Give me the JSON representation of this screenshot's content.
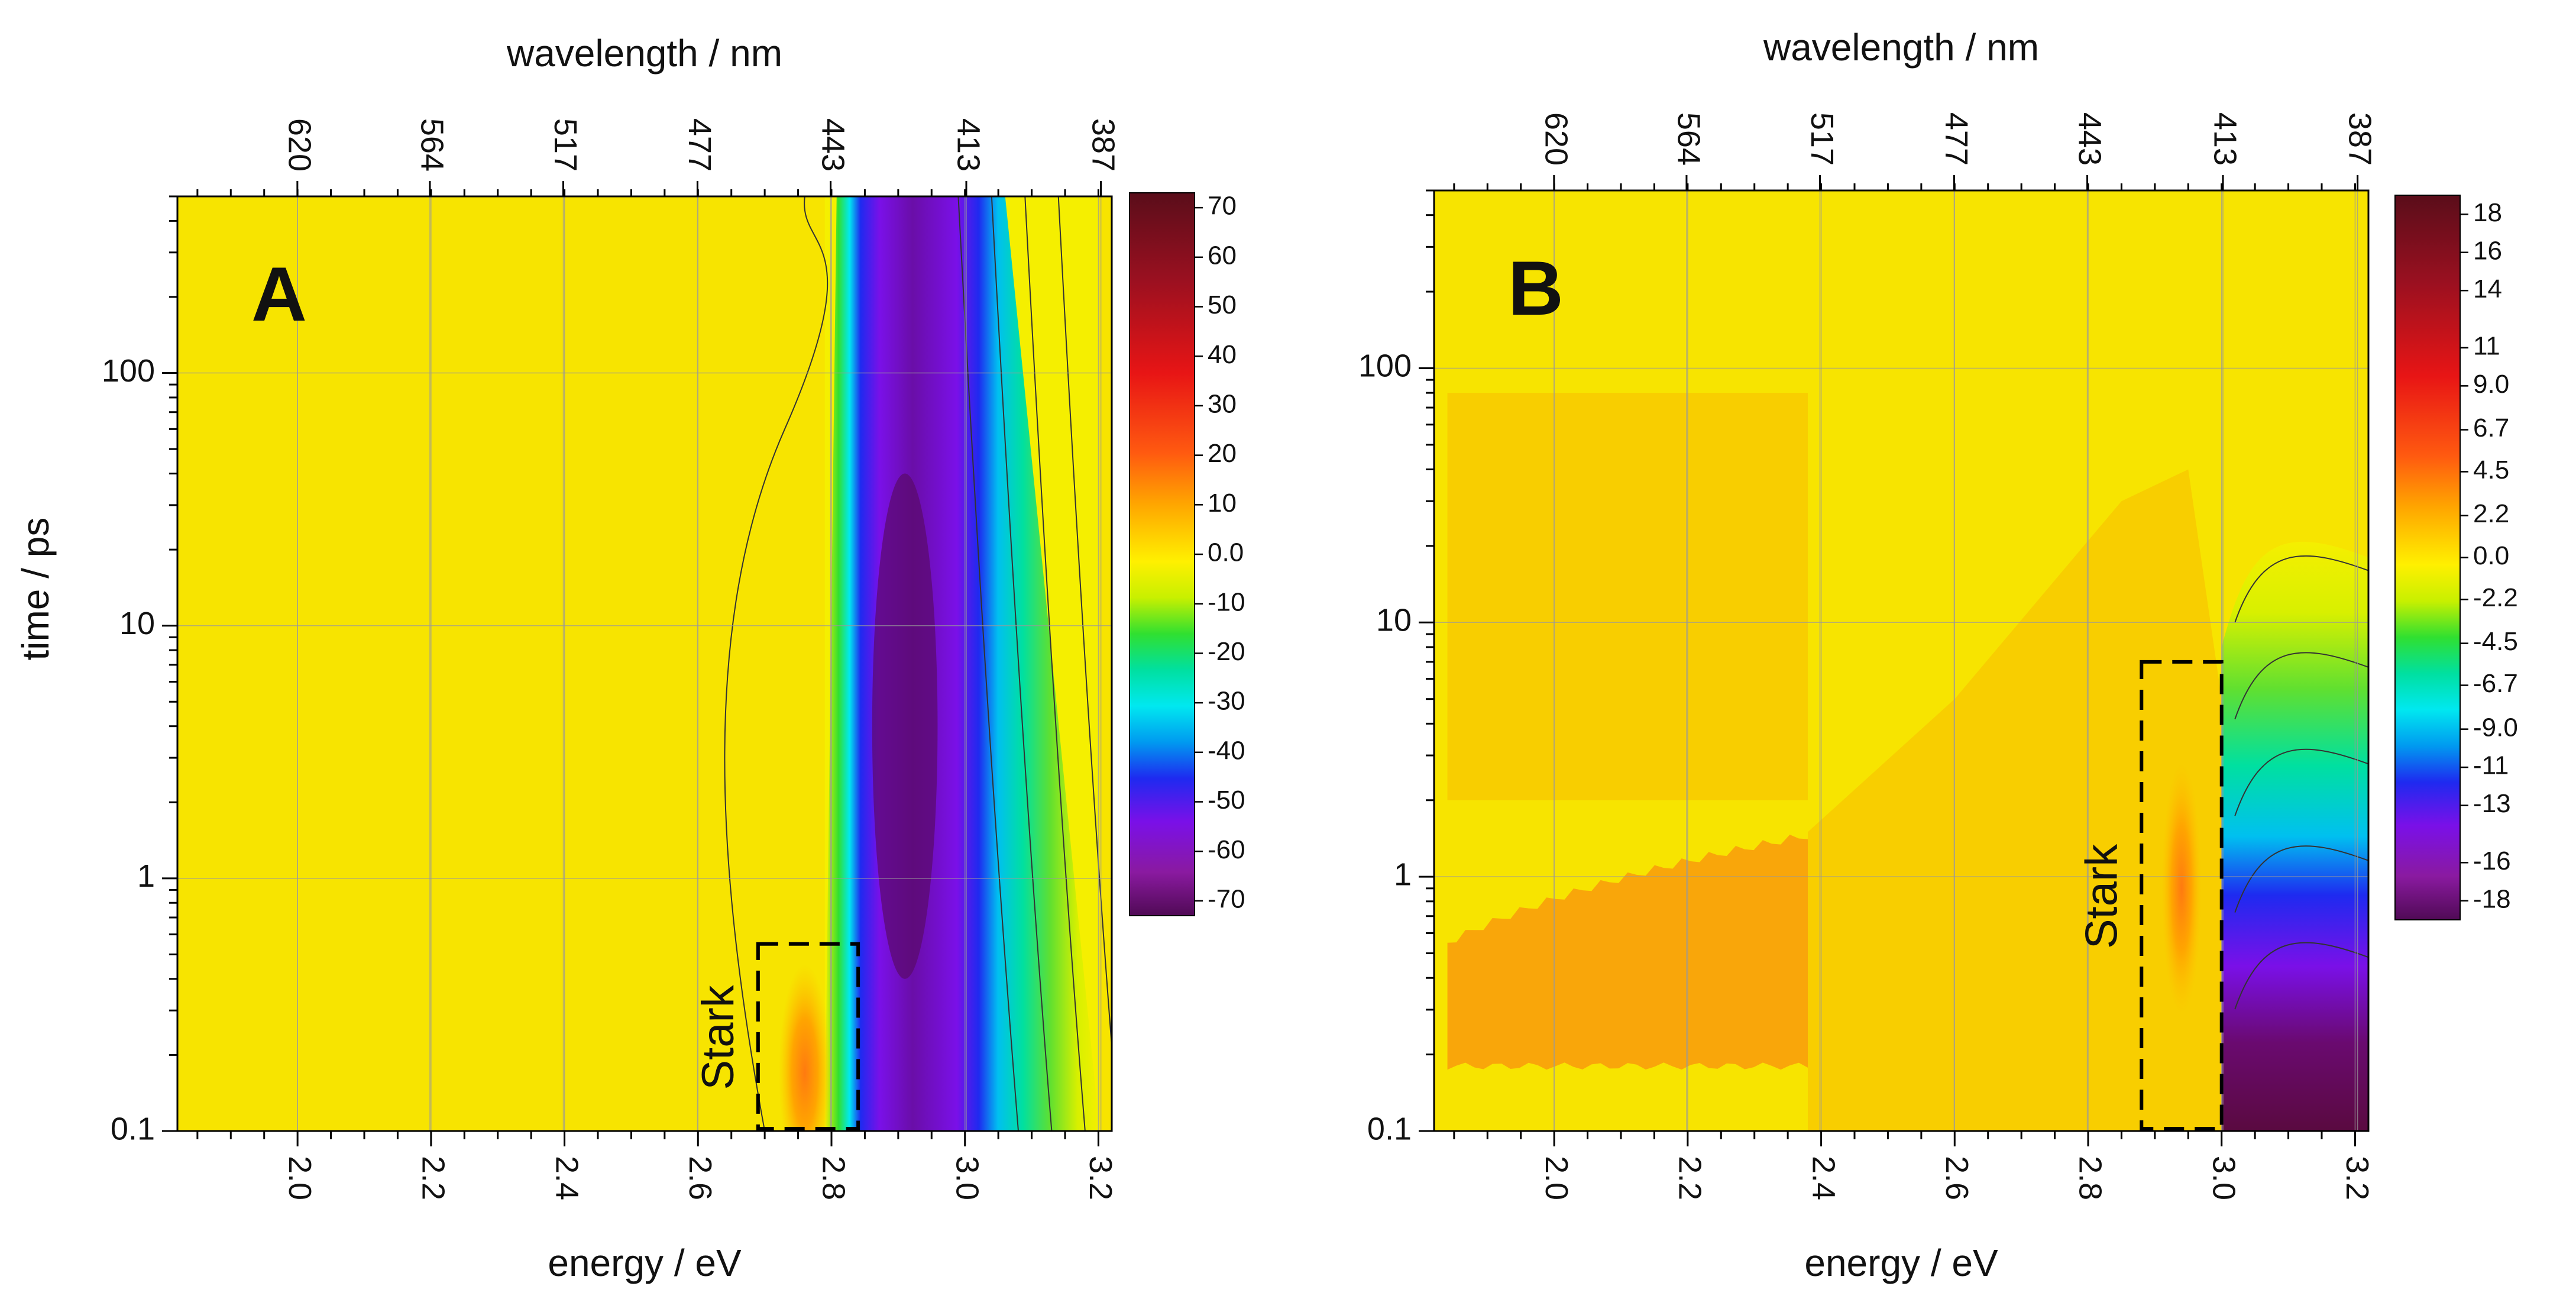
{
  "chart_data": [
    {
      "panel_label": "A",
      "type": "heatmap",
      "xlabel": "energy / eV",
      "ylabel": "time / ps",
      "x2label": "wavelength / nm",
      "xlim": [
        1.82,
        3.22
      ],
      "ylim": [
        0.1,
        500
      ],
      "yscale": "log",
      "xticks": [
        2.0,
        2.2,
        2.4,
        2.6,
        2.8,
        3.0,
        3.2
      ],
      "xtick_labels": [
        "2.0",
        "2.2",
        "2.4",
        "2.6",
        "2.8",
        "3.0",
        "3.2"
      ],
      "yticks": [
        0.1,
        1,
        10,
        100
      ],
      "ytick_labels": [
        "0.1",
        "1",
        "10",
        "100"
      ],
      "top_ticks_nm": [
        620,
        564,
        517,
        477,
        443,
        413,
        387
      ],
      "top_tick_labels": [
        "620",
        "564",
        "517",
        "477",
        "443",
        "413",
        "387"
      ],
      "colorbar_labels": [
        "70",
        "60",
        "50",
        "40",
        "30",
        "20",
        "10",
        "0.0",
        "-10",
        "-20",
        "-30",
        "-40",
        "-50",
        "-60",
        "-70"
      ],
      "colorbar_range": [
        -73,
        73
      ],
      "features": [
        {
          "kind": "bleach",
          "energy": 2.91,
          "energy_width": 0.07,
          "time_range": [
            0.2,
            500
          ],
          "min_value": -70
        },
        {
          "kind": "bleach-tail",
          "energy": 3.02,
          "energy_width": 0.12,
          "time_range": [
            0.1,
            0.5
          ],
          "min_value": -35
        },
        {
          "kind": "stark-positive",
          "energy": 2.76,
          "energy_width": 0.03,
          "time_range": [
            0.1,
            0.3
          ],
          "max_value": 8
        }
      ],
      "annotation": {
        "text": "Stark",
        "x_range": [
          2.69,
          2.84
        ],
        "y_range": [
          0.1,
          0.55
        ]
      }
    },
    {
      "panel_label": "B",
      "type": "heatmap",
      "xlabel": "energy / eV",
      "ylabel": "",
      "x2label": "wavelength / nm",
      "xlim": [
        1.82,
        3.22
      ],
      "ylim": [
        0.1,
        500
      ],
      "yscale": "log",
      "xticks": [
        2.0,
        2.2,
        2.4,
        2.6,
        2.8,
        3.0,
        3.2
      ],
      "xtick_labels": [
        "2.0",
        "2.2",
        "2.4",
        "2.6",
        "2.8",
        "3.0",
        "3.2"
      ],
      "yticks": [
        0.1,
        1,
        10,
        100
      ],
      "ytick_labels": [
        "0.1",
        "1",
        "10",
        "100"
      ],
      "top_ticks_nm": [
        620,
        564,
        517,
        477,
        443,
        413,
        387
      ],
      "top_tick_labels": [
        "620",
        "564",
        "517",
        "477",
        "443",
        "413",
        "387"
      ],
      "colorbar_labels": [
        "18",
        "16",
        "14",
        "11",
        "9.0",
        "6.7",
        "4.5",
        "2.2",
        "0.0",
        "-2.2",
        "-4.5",
        "-6.7",
        "-9.0",
        "-11",
        "-13",
        "-16",
        "-18"
      ],
      "colorbar_range": [
        -19,
        19
      ],
      "features": [
        {
          "kind": "positive-band",
          "energy_range": [
            1.84,
            2.38
          ],
          "time_range": [
            0.18,
            0.55
          ],
          "max_value": 3
        },
        {
          "kind": "stark-positive",
          "energy": 2.94,
          "energy_width": 0.025,
          "time_range": [
            0.3,
            2
          ],
          "max_value": 3
        },
        {
          "kind": "bleach",
          "energy_range": [
            3.04,
            3.22
          ],
          "time_range": [
            0.1,
            20
          ],
          "min_value": -18
        }
      ],
      "annotation": {
        "text": "Stark",
        "x_range": [
          2.88,
          3.0
        ],
        "y_range": [
          0.1,
          7
        ]
      }
    }
  ]
}
